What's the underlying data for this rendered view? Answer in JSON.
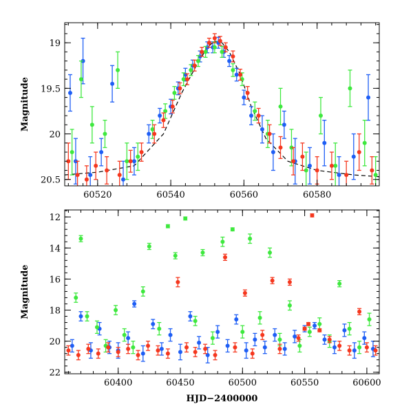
{
  "chart_data": [
    {
      "type": "scatter",
      "panel": "top",
      "xlabel": "",
      "ylabel": "Magnitude",
      "xlim": [
        60511,
        60597
      ],
      "ylim": [
        20.57,
        18.78
      ],
      "y_inverted": true,
      "x_ticks": [
        60520,
        60540,
        60560,
        60580
      ],
      "x_tick_labels": [
        "60520",
        "60540",
        "60560",
        "60580"
      ],
      "y_ticks": [
        19,
        19.5,
        20,
        20.5
      ],
      "y_tick_labels": [
        "19",
        "19.5",
        "20",
        "20.5"
      ],
      "grid": false,
      "error_bars": true,
      "model_curve": {
        "color": "#000000",
        "style": "dashed",
        "x": [
          60511,
          60520,
          60530,
          60538,
          60543,
          60547,
          60550,
          60552,
          60554,
          60556,
          60559,
          60562,
          60566,
          60572,
          60580,
          60590,
          60597
        ],
        "y": [
          20.45,
          20.42,
          20.35,
          20.0,
          19.55,
          19.25,
          19.05,
          18.98,
          19.0,
          19.1,
          19.35,
          19.7,
          20.05,
          20.3,
          20.4,
          20.45,
          20.47
        ]
      },
      "series": [
        {
          "color": "#1e5ef5",
          "x": [
            60512.5,
            60514,
            60516,
            60518,
            60521,
            60524,
            60527,
            60530,
            60534,
            60537,
            60540,
            60542,
            60544,
            60546,
            60548,
            60550,
            60551.5,
            60553,
            60554.5,
            60556,
            60558,
            60560,
            60562,
            60565,
            60568,
            60571,
            60574,
            60578,
            60582,
            60586,
            60590,
            60594
          ],
          "y": [
            19.55,
            20.3,
            19.2,
            20.45,
            20.2,
            19.45,
            20.5,
            20.3,
            20.0,
            19.8,
            19.7,
            19.5,
            19.35,
            19.25,
            19.15,
            19.05,
            19.05,
            19.0,
            19.1,
            19.2,
            19.35,
            19.6,
            19.8,
            19.95,
            20.2,
            19.9,
            20.3,
            20.35,
            20.1,
            20.45,
            20.25,
            19.6
          ],
          "err": [
            0.2,
            0.25,
            0.25,
            0.2,
            0.15,
            0.2,
            0.2,
            0.15,
            0.1,
            0.08,
            0.08,
            0.07,
            0.07,
            0.06,
            0.06,
            0.06,
            0.06,
            0.06,
            0.06,
            0.06,
            0.07,
            0.08,
            0.1,
            0.15,
            0.2,
            0.15,
            0.25,
            0.2,
            0.25,
            0.2,
            0.25,
            0.25
          ]
        },
        {
          "color": "#3ee83e",
          "x": [
            60513,
            60515.5,
            60518.5,
            60522,
            60525.5,
            60528,
            60531,
            60535,
            60538.5,
            60541,
            60543.5,
            60545.5,
            60547.5,
            60549.5,
            60552,
            60554,
            60557,
            60559.5,
            60563,
            60566.5,
            60570,
            60573,
            60577,
            60581,
            60585,
            60589,
            60593,
            60596
          ],
          "y": [
            20.2,
            19.4,
            19.9,
            20.0,
            19.3,
            20.3,
            20.25,
            19.95,
            19.75,
            19.55,
            19.4,
            19.3,
            19.2,
            19.1,
            19.05,
            19.1,
            19.3,
            19.4,
            19.75,
            20.0,
            19.7,
            20.15,
            20.4,
            19.8,
            20.35,
            19.5,
            20.1,
            20.45
          ],
          "err": [
            0.25,
            0.2,
            0.2,
            0.15,
            0.2,
            0.2,
            0.15,
            0.1,
            0.08,
            0.07,
            0.07,
            0.06,
            0.06,
            0.06,
            0.06,
            0.06,
            0.07,
            0.07,
            0.1,
            0.15,
            0.2,
            0.2,
            0.2,
            0.2,
            0.25,
            0.2,
            0.25,
            0.2
          ]
        },
        {
          "color": "#f5371e",
          "x": [
            60512,
            60514.5,
            60517,
            60519.5,
            60522.5,
            60526,
            60529,
            60532,
            60535.5,
            60538,
            60540.5,
            60542.5,
            60544.5,
            60546.5,
            60548.5,
            60550.5,
            60552,
            60553.5,
            60555,
            60557,
            60559,
            60561,
            60564,
            60567,
            60570,
            60573.5,
            60576,
            60580,
            60584,
            60588,
            60591.5,
            60595
          ],
          "y": [
            20.3,
            20.45,
            20.5,
            20.35,
            20.4,
            20.45,
            20.3,
            20.2,
            20.0,
            19.85,
            19.7,
            19.5,
            19.4,
            19.25,
            19.1,
            19.0,
            18.95,
            18.98,
            19.05,
            19.15,
            19.35,
            19.55,
            19.8,
            20.0,
            20.15,
            20.3,
            20.25,
            20.4,
            20.35,
            20.45,
            20.2,
            20.4
          ],
          "err": [
            0.2,
            0.15,
            0.15,
            0.15,
            0.15,
            0.15,
            0.12,
            0.1,
            0.1,
            0.08,
            0.07,
            0.06,
            0.06,
            0.06,
            0.05,
            0.05,
            0.05,
            0.05,
            0.05,
            0.06,
            0.06,
            0.07,
            0.08,
            0.1,
            0.12,
            0.15,
            0.15,
            0.15,
            0.15,
            0.15,
            0.2,
            0.15
          ]
        }
      ]
    },
    {
      "type": "scatter",
      "panel": "bottom",
      "xlabel": "HJD−2400000",
      "ylabel": "Magnitude",
      "xlim": [
        60357,
        60610
      ],
      "ylim": [
        22.1,
        11.55
      ],
      "y_inverted": true,
      "x_ticks": [
        60400,
        60450,
        60500,
        60550,
        60600
      ],
      "x_tick_labels": [
        "60400",
        "60450",
        "60500",
        "60550",
        "60600"
      ],
      "y_ticks": [
        12,
        14,
        16,
        18,
        20,
        22
      ],
      "y_tick_labels": [
        "12",
        "14",
        "16",
        "18",
        "20",
        "22"
      ],
      "grid": false,
      "error_bars": true,
      "series": [
        {
          "color": "#1e5ef5",
          "x": [
            60363,
            60370,
            60378,
            60385,
            60393,
            60400,
            60408,
            60413,
            60420,
            60428,
            60435,
            60442,
            60450,
            60458,
            60465,
            60472,
            60480,
            60488,
            60495,
            60503,
            60510,
            60518,
            60526,
            60534,
            60542,
            60550,
            60558,
            60566,
            60574,
            60582,
            60590,
            60598,
            60605
          ],
          "y": [
            20.3,
            18.4,
            20.6,
            19.2,
            20.4,
            20.6,
            19.8,
            17.6,
            20.8,
            18.9,
            20.5,
            19.6,
            20.7,
            18.4,
            20.1,
            20.9,
            19.4,
            20.3,
            18.6,
            20.6,
            19.9,
            20.4,
            19.6,
            20.5,
            19.7,
            19.2,
            19.0,
            19.9,
            20.4,
            19.3,
            20.6,
            19.8,
            20.5
          ],
          "err": [
            0.4,
            0.3,
            0.5,
            0.4,
            0.4,
            0.5,
            0.4,
            0.2,
            0.5,
            0.3,
            0.4,
            0.4,
            0.5,
            0.3,
            0.4,
            0.5,
            0.4,
            0.4,
            0.3,
            0.5,
            0.4,
            0.4,
            0.4,
            0.4,
            0.4,
            0.2,
            0.2,
            0.3,
            0.4,
            0.4,
            0.5,
            0.4,
            0.5
          ]
        },
        {
          "color": "#3ee83e",
          "x": [
            60366,
            60370,
            60375,
            60383,
            60390,
            60398,
            60405,
            60412,
            60420,
            60425,
            60433,
            60440,
            60446,
            60454,
            60462,
            60468,
            60476,
            60484,
            60492,
            60500,
            60506,
            60514,
            60522,
            60530,
            60538,
            60546,
            60554,
            60562,
            60570,
            60578,
            60586,
            60594,
            60602
          ],
          "y": [
            17.2,
            13.4,
            18.4,
            19.1,
            20.3,
            18.0,
            19.6,
            20.4,
            16.8,
            13.9,
            19.2,
            12.6,
            14.5,
            12.1,
            18.7,
            14.3,
            19.8,
            13.6,
            12.8,
            19.4,
            13.4,
            18.5,
            14.3,
            19.9,
            17.7,
            20.3,
            19.4,
            18.9,
            20.0,
            16.3,
            19.2,
            20.4,
            18.6
          ],
          "err": [
            0.3,
            0.2,
            0.3,
            0.4,
            0.4,
            0.3,
            0.4,
            0.4,
            0.3,
            0.2,
            0.4,
            0.1,
            0.2,
            0.1,
            0.3,
            0.2,
            0.4,
            0.3,
            0.1,
            0.4,
            0.3,
            0.4,
            0.3,
            0.4,
            0.3,
            0.4,
            0.3,
            0.4,
            0.4,
            0.2,
            0.4,
            0.4,
            0.4
          ]
        },
        {
          "color": "#f5371e",
          "x": [
            60360,
            60368,
            60376,
            60384,
            60392,
            60400,
            60408,
            60416,
            60424,
            60432,
            60440,
            60448,
            60455,
            60462,
            60470,
            60478,
            60486,
            60494,
            60502,
            60508,
            60516,
            60524,
            60530,
            60538,
            60545,
            60550,
            60553,
            60556,
            60562,
            60570,
            60578,
            60586,
            60594,
            60600,
            60607
          ],
          "y": [
            20.6,
            20.9,
            20.5,
            20.8,
            20.4,
            20.7,
            20.5,
            20.9,
            20.3,
            20.6,
            20.8,
            16.2,
            20.4,
            20.7,
            20.5,
            20.9,
            14.6,
            20.4,
            16.9,
            20.8,
            19.6,
            16.1,
            20.5,
            16.2,
            19.8,
            19.2,
            18.9,
            11.9,
            19.3,
            19.9,
            20.3,
            20.6,
            18.1,
            20.4,
            20.6
          ],
          "err": [
            0.3,
            0.3,
            0.3,
            0.3,
            0.3,
            0.3,
            0.3,
            0.3,
            0.3,
            0.3,
            0.3,
            0.3,
            0.3,
            0.3,
            0.3,
            0.3,
            0.2,
            0.3,
            0.2,
            0.3,
            0.3,
            0.2,
            0.3,
            0.2,
            0.2,
            0.1,
            0.1,
            0.1,
            0.1,
            0.2,
            0.3,
            0.3,
            0.2,
            0.3,
            0.3
          ]
        }
      ]
    }
  ]
}
